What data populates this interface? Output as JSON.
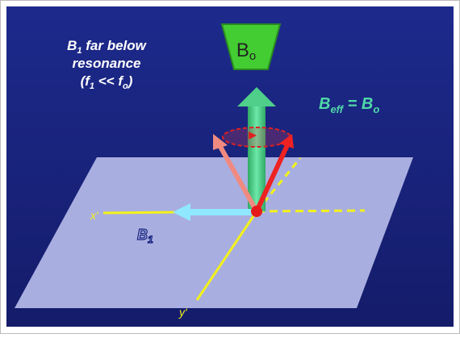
{
  "caption": {
    "line1_main": "B",
    "line1_sub": "1",
    "line1_rest": " far below",
    "line2": "resonance",
    "line3_open": "(f",
    "line3_sub1": "1",
    "line3_mid": " << f",
    "line3_sub2": "o",
    "line3_close": ")"
  },
  "equation": {
    "b": "B",
    "sub_eff": "eff",
    "eq": " = B",
    "sub_o": "o"
  },
  "magnet_label": {
    "b": "B",
    "sub": "o"
  },
  "axes": {
    "x": "x'",
    "y": "y'"
  },
  "b1_label": {
    "b": "B",
    "sub": "1"
  }
}
